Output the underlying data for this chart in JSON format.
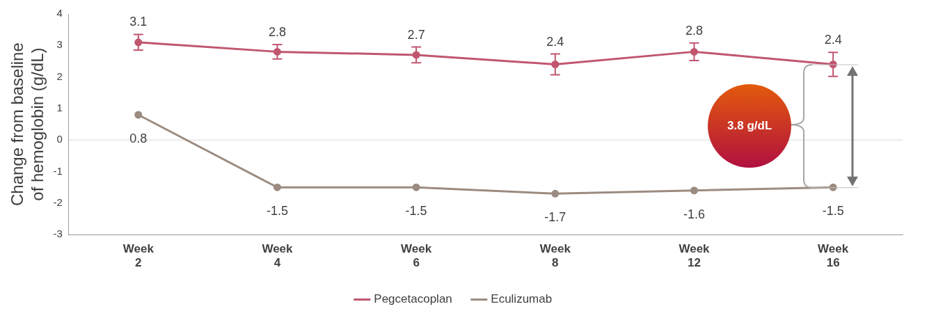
{
  "chart_data": {
    "type": "line",
    "ylabel": "Change from baseline of hemoglobin (g/dL)",
    "categories": [
      "Week 2",
      "Week 4",
      "Week 6",
      "Week 8",
      "Week 12",
      "Week 16"
    ],
    "series": [
      {
        "name": "Pegcetacoplan",
        "color": "#c0566f",
        "values": [
          3.1,
          2.8,
          2.7,
          2.4,
          2.8,
          2.4
        ],
        "errors": [
          0.25,
          0.23,
          0.25,
          0.33,
          0.28,
          0.38
        ]
      },
      {
        "name": "Eculizumab",
        "color": "#9c8b80",
        "values": [
          0.8,
          -1.5,
          -1.5,
          -1.7,
          -1.6,
          -1.5
        ]
      }
    ],
    "ylim": [
      -3,
      4
    ],
    "yticks": [
      -3,
      -2,
      -1,
      0,
      1,
      2,
      3,
      4
    ],
    "grid": false,
    "legend": "bottom",
    "marker": "circle",
    "line_style": "solid",
    "data_labels": true,
    "ref_lines": [
      {
        "axis": "y",
        "value": 0,
        "color": "#d9d9d9"
      }
    ],
    "annotations": [
      "3.8 g/dL"
    ]
  }
}
